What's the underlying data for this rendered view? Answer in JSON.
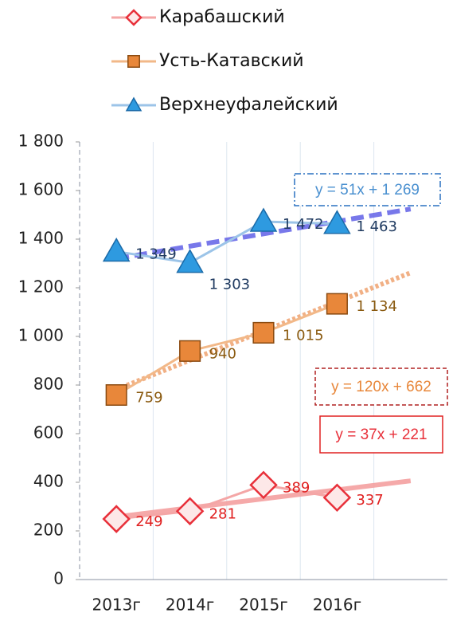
{
  "chart_data": {
    "type": "line",
    "categories": [
      "2013г",
      "2014г",
      "2015г",
      "2016г",
      null
    ],
    "series": [
      {
        "name": "Карабашский",
        "color": "#e8303a",
        "line_color": "#f4a6a6",
        "marker": "diamond",
        "values": [
          249,
          281,
          389,
          337,
          null
        ],
        "value_labels": [
          "249",
          "281",
          "389",
          "337",
          null
        ],
        "trend": {
          "slope": 37,
          "intercept": 221,
          "label": "y = 37x + 221",
          "style": "solid",
          "color": "#f4a0a0"
        }
      },
      {
        "name": "Усть-Катавский",
        "color": "#e8873a",
        "line_color": "#f2b888",
        "marker": "square",
        "values": [
          759,
          940,
          1015,
          1134,
          null
        ],
        "value_labels": [
          "759",
          "940",
          "1 015",
          "1 134",
          null
        ],
        "trend": {
          "slope": 120,
          "intercept": 662,
          "label": "y = 120x + 662",
          "style": "dotted",
          "color": "#f0a878"
        }
      },
      {
        "name": "Верхнеуфалейский",
        "color": "#2e9ae0",
        "line_color": "#9cc4e8",
        "marker": "triangle",
        "values": [
          1349,
          1303,
          1472,
          1463,
          null
        ],
        "value_labels": [
          "1 349",
          "1 303",
          "1 472",
          "1 463",
          null
        ],
        "trend": {
          "slope": 51,
          "intercept": 1269,
          "label": "y = 51x + 1 269",
          "style": "dashed",
          "color": "#6a6ae8"
        }
      }
    ],
    "ylim": [
      0,
      1800
    ],
    "yticks": [
      0,
      200,
      400,
      600,
      800,
      {
        "value": 1000,
        "label": "1 000"
      },
      {
        "value": 1200,
        "label": "1 200"
      },
      {
        "value": 1400,
        "label": "1 400"
      },
      {
        "value": 1600,
        "label": "1 600"
      },
      {
        "value": 1800,
        "label": "1 800"
      }
    ],
    "grid": true,
    "legend": "top"
  }
}
